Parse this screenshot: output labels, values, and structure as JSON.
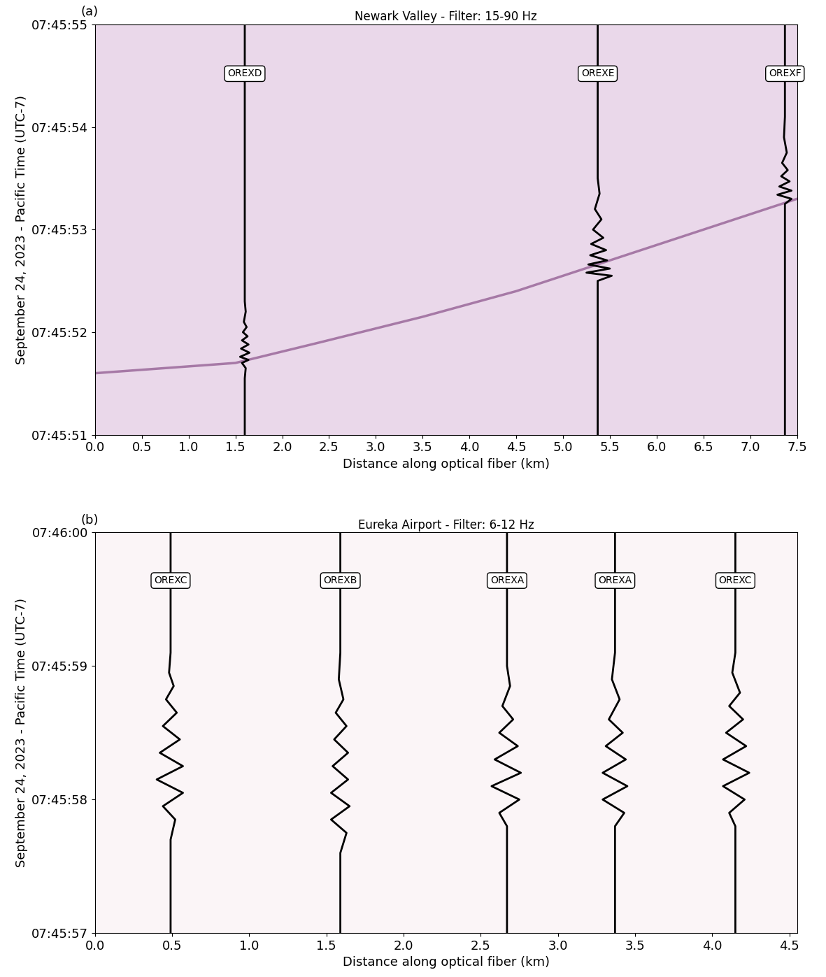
{
  "chart_data": [
    {
      "type": "wiggle",
      "panel": "(a)",
      "title": "Newark Valley - Filter: 15-90 Hz",
      "x_label": "Distance along optical fiber (km)",
      "y_label": "September 24, 2023 - Pacific Time (UTC-7)",
      "xlim": [
        0.0,
        7.5
      ],
      "xticks": [
        0.0,
        0.5,
        1.0,
        1.5,
        2.0,
        2.5,
        3.0,
        3.5,
        4.0,
        4.5,
        5.0,
        5.5,
        6.0,
        6.5,
        7.0,
        7.5
      ],
      "ylim": [
        51,
        55
      ],
      "yticks": [
        {
          "value": 51,
          "label": "07:45:51"
        },
        {
          "value": 52,
          "label": "07:45:52"
        },
        {
          "value": 53,
          "label": "07:45:53"
        },
        {
          "value": 54,
          "label": "07:45:54"
        },
        {
          "value": 55,
          "label": "07:45:55"
        }
      ],
      "series": [
        {
          "name": "OREXD",
          "x": 1.6,
          "color": "#000000",
          "t": [
            51.55,
            51.65,
            51.7,
            51.73,
            51.76,
            51.8,
            51.84,
            51.88,
            51.92,
            51.96,
            52.0,
            52.05,
            52.1,
            52.2,
            52.3
          ],
          "amp": [
            0,
            0.01,
            -0.03,
            0.04,
            -0.05,
            0.05,
            -0.04,
            0.04,
            -0.03,
            0.03,
            -0.02,
            0.02,
            -0.01,
            0.01,
            0
          ]
        },
        {
          "name": "OREXE",
          "x": 5.37,
          "color": "#000000",
          "t": [
            52.5,
            52.55,
            52.58,
            52.62,
            52.66,
            52.7,
            52.75,
            52.8,
            52.86,
            52.92,
            53.0,
            53.1,
            53.2,
            53.35,
            53.5
          ],
          "amp": [
            0,
            0.15,
            -0.12,
            0.13,
            -0.1,
            0.1,
            -0.08,
            0.09,
            -0.07,
            0.06,
            -0.05,
            0.04,
            -0.03,
            0.02,
            0
          ]
        },
        {
          "name": "OREXF",
          "x": 7.37,
          "color": "#000000",
          "t": [
            53.25,
            53.3,
            53.34,
            53.38,
            53.42,
            53.47,
            53.52,
            53.58,
            53.65,
            53.75,
            53.9,
            54.1
          ],
          "amp": [
            0,
            0.07,
            -0.08,
            0.07,
            -0.06,
            0.05,
            -0.04,
            0.03,
            -0.03,
            0.02,
            -0.01,
            0
          ]
        }
      ],
      "arrival": {
        "x": [
          0.0,
          1.5,
          2.4,
          3.5,
          4.5,
          5.5,
          6.5,
          7.5
        ],
        "values": [
          51.6,
          51.7,
          51.9,
          52.15,
          52.4,
          52.7,
          53.0,
          53.3
        ],
        "color": "#7a3a7a"
      }
    },
    {
      "type": "wiggle",
      "panel": "(b)",
      "title": "Eureka Airport - Filter: 6-12 Hz",
      "x_label": "Distance along optical fiber (km)",
      "y_label": "September 24, 2023 - Pacific Time (UTC-7)",
      "xlim": [
        0.0,
        4.55
      ],
      "xticks": [
        0.0,
        0.5,
        1.0,
        1.5,
        2.0,
        2.5,
        3.0,
        3.5,
        4.0,
        4.5
      ],
      "ylim": [
        57,
        60
      ],
      "yticks": [
        {
          "value": 57,
          "label": "07:45:57"
        },
        {
          "value": 58,
          "label": "07:45:58"
        },
        {
          "value": 59,
          "label": "07:45:59"
        },
        {
          "value": 60,
          "label": "07:46:00"
        }
      ],
      "series": [
        {
          "name": "OREXC",
          "x": 0.49,
          "color": "#000000",
          "t": [
            57.7,
            57.85,
            57.95,
            58.05,
            58.15,
            58.25,
            58.35,
            58.45,
            58.55,
            58.65,
            58.75,
            58.85,
            58.95,
            59.1
          ],
          "amp": [
            0,
            0.03,
            -0.05,
            0.08,
            -0.09,
            0.08,
            -0.07,
            0.06,
            -0.05,
            0.04,
            -0.03,
            0.02,
            -0.01,
            0
          ]
        },
        {
          "name": "OREXB",
          "x": 1.59,
          "color": "#000000",
          "t": [
            57.6,
            57.75,
            57.85,
            57.95,
            58.05,
            58.15,
            58.25,
            58.35,
            58.45,
            58.55,
            58.65,
            58.75,
            58.9,
            59.1
          ],
          "amp": [
            0,
            0.04,
            -0.06,
            0.06,
            -0.06,
            0.05,
            -0.05,
            0.05,
            -0.04,
            0.04,
            -0.03,
            0.02,
            -0.01,
            0
          ]
        },
        {
          "name": "OREXA",
          "x": 2.67,
          "color": "#000000",
          "t": [
            57.8,
            57.9,
            58.0,
            58.1,
            58.2,
            58.3,
            58.4,
            58.5,
            58.6,
            58.7,
            58.85,
            59.0
          ],
          "amp": [
            0,
            -0.05,
            0.08,
            -0.1,
            0.09,
            -0.08,
            0.07,
            -0.05,
            0.04,
            -0.03,
            0.02,
            0
          ]
        },
        {
          "name": "OREXA",
          "x": 3.37,
          "color": "#000000",
          "t": [
            57.8,
            57.9,
            58.0,
            58.1,
            58.2,
            58.3,
            58.4,
            58.5,
            58.6,
            58.75,
            58.9,
            59.1
          ],
          "amp": [
            0,
            0.06,
            -0.08,
            0.08,
            -0.08,
            0.07,
            -0.06,
            0.05,
            -0.04,
            0.03,
            -0.02,
            0
          ]
        },
        {
          "name": "OREXC",
          "x": 4.15,
          "color": "#000000",
          "t": [
            57.8,
            57.9,
            58.0,
            58.1,
            58.2,
            58.3,
            58.4,
            58.5,
            58.6,
            58.7,
            58.8,
            58.95,
            59.1
          ],
          "amp": [
            0,
            -0.04,
            0.06,
            -0.08,
            0.09,
            -0.08,
            0.07,
            -0.06,
            0.05,
            -0.04,
            0.03,
            -0.02,
            0
          ]
        }
      ]
    }
  ]
}
